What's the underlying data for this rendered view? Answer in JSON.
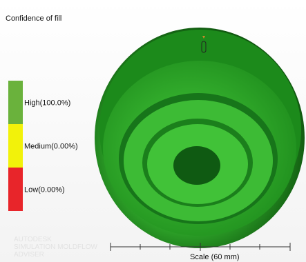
{
  "title": "Confidence of fill",
  "legend": [
    {
      "label": "High(100.0%)",
      "color": "#6ab23c"
    },
    {
      "label": "Medium(0.00%)",
      "color": "#f2f20a"
    },
    {
      "label": "Low(0.00%)",
      "color": "#e8252a"
    }
  ],
  "watermark": [
    "AUTODESK",
    "SIMULATION MOLDFLOW",
    "ADVISER"
  ],
  "scale_label": "Scale (60 mm)"
}
